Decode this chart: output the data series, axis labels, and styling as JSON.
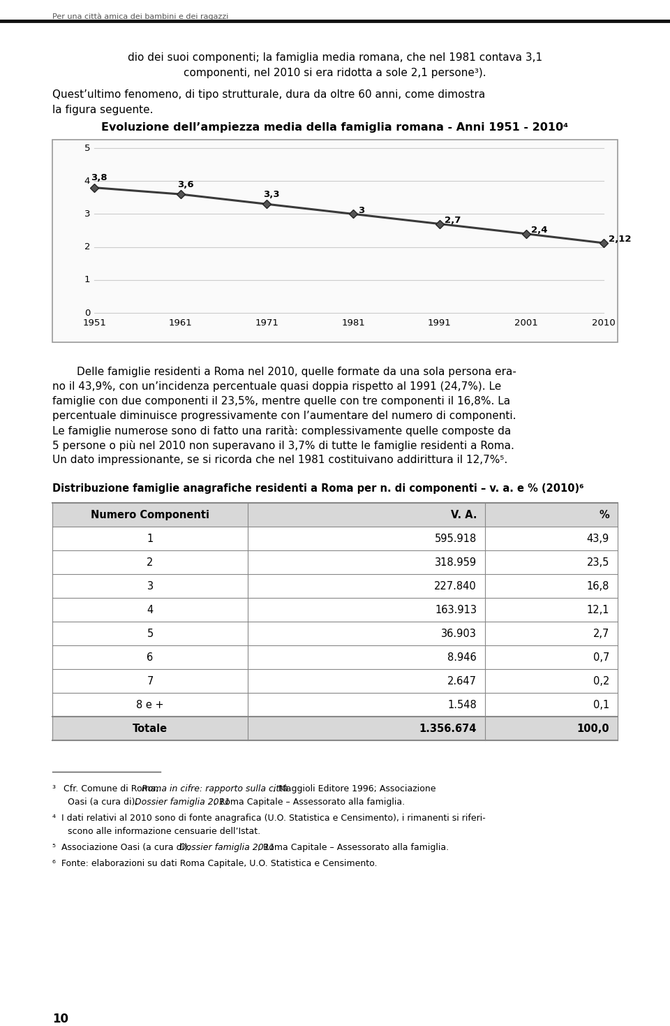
{
  "page_header": "Per una città amica dei bambini e dei ragazzi",
  "page_number": "10",
  "chart_title": "Evoluzione dell’ampiezza media della famiglia romana - Anni 1951 - 2010⁴",
  "chart_years": [
    1951,
    1961,
    1971,
    1981,
    1991,
    2001,
    2010
  ],
  "chart_values": [
    3.8,
    3.6,
    3.3,
    3.0,
    2.7,
    2.4,
    2.12
  ],
  "chart_ylim": [
    0,
    5
  ],
  "chart_yticks": [
    0,
    1,
    2,
    3,
    4,
    5
  ],
  "label_texts": [
    "3,8",
    "3,6",
    "3,3",
    "3",
    "2,7",
    "2,4",
    "2,12"
  ],
  "table_headers": [
    "Numero Componenti",
    "V. A.",
    "%"
  ],
  "table_rows": [
    [
      "1",
      "595.918",
      "43,9"
    ],
    [
      "2",
      "318.959",
      "23,5"
    ],
    [
      "3",
      "227.840",
      "16,8"
    ],
    [
      "4",
      "163.913",
      "12,1"
    ],
    [
      "5",
      "36.903",
      "2,7"
    ],
    [
      "6",
      "8.946",
      "0,7"
    ],
    [
      "7",
      "2.647",
      "0,2"
    ],
    [
      "8 e +",
      "1.548",
      "0,1"
    ],
    [
      "Totale",
      "1.356.674",
      "100,0"
    ]
  ],
  "bg_color": "#ffffff",
  "text_color": "#000000",
  "gray_color": "#555555",
  "chart_line_color": "#3a3a3a",
  "chart_marker_color": "#555555",
  "chart_grid_color": "#cccccc",
  "table_header_bg": "#d8d8d8",
  "table_border_color": "#888888",
  "header_line_color": "#111111"
}
